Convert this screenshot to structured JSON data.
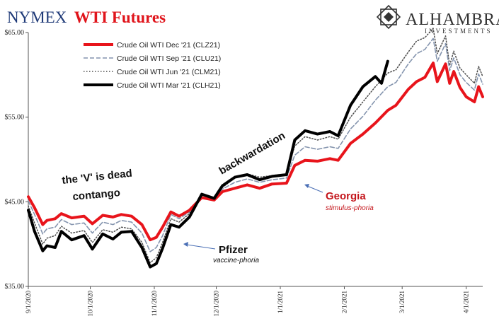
{
  "title": {
    "part1": "NYMEX",
    "part2": "WTI Futures"
  },
  "logo": {
    "name": "ALHAMBRA",
    "sub": "INVESTMENTS",
    "icon": "alhambra-star-logo"
  },
  "chart_data": {
    "type": "line",
    "ylim": [
      35,
      65
    ],
    "y_ticks": [
      35,
      45,
      55,
      65
    ],
    "y_tick_labels": [
      "$35.00",
      "$45.00",
      "$55.00",
      "$65.00"
    ],
    "x_tick_labels": [
      "9/1/2020",
      "10/1/2020",
      "11/1/2020",
      "12/1/2020",
      "1/1/2021",
      "2/1/2021",
      "3/1/2021",
      "4/1/2021"
    ],
    "x_range": [
      "2020-09-01",
      "2021-04-09"
    ],
    "legend_position": "top-left",
    "series": [
      {
        "name": "Crude Oil WTI Dec '21 (CLZ21)",
        "color": "#e8141b",
        "style": "solid-thick",
        "points": [
          [
            "2020-09-01",
            45.6
          ],
          [
            "2020-09-04",
            44.3
          ],
          [
            "2020-09-08",
            42.3
          ],
          [
            "2020-09-10",
            42.8
          ],
          [
            "2020-09-14",
            43.0
          ],
          [
            "2020-09-17",
            43.6
          ],
          [
            "2020-09-22",
            43.1
          ],
          [
            "2020-09-28",
            43.3
          ],
          [
            "2020-10-02",
            42.4
          ],
          [
            "2020-10-07",
            43.4
          ],
          [
            "2020-10-12",
            43.2
          ],
          [
            "2020-10-16",
            43.5
          ],
          [
            "2020-10-21",
            43.3
          ],
          [
            "2020-10-26",
            42.3
          ],
          [
            "2020-10-30",
            40.5
          ],
          [
            "2020-11-02",
            40.8
          ],
          [
            "2020-11-05",
            42.0
          ],
          [
            "2020-11-09",
            43.8
          ],
          [
            "2020-11-13",
            43.3
          ],
          [
            "2020-11-18",
            44.0
          ],
          [
            "2020-11-24",
            45.5
          ],
          [
            "2020-11-30",
            45.2
          ],
          [
            "2020-12-04",
            46.2
          ],
          [
            "2020-12-10",
            46.6
          ],
          [
            "2020-12-16",
            47.0
          ],
          [
            "2020-12-22",
            46.6
          ],
          [
            "2020-12-28",
            47.1
          ],
          [
            "2021-01-04",
            47.2
          ],
          [
            "2021-01-08",
            49.3
          ],
          [
            "2021-01-13",
            49.9
          ],
          [
            "2021-01-19",
            49.8
          ],
          [
            "2021-01-25",
            50.1
          ],
          [
            "2021-01-29",
            49.9
          ],
          [
            "2021-02-04",
            51.9
          ],
          [
            "2021-02-10",
            53.0
          ],
          [
            "2021-02-16",
            54.3
          ],
          [
            "2021-02-22",
            55.8
          ],
          [
            "2021-02-26",
            56.4
          ],
          [
            "2021-03-04",
            58.3
          ],
          [
            "2021-03-08",
            59.2
          ],
          [
            "2021-03-12",
            59.7
          ],
          [
            "2021-03-16",
            61.4
          ],
          [
            "2021-03-18",
            59.2
          ],
          [
            "2021-03-22",
            61.3
          ],
          [
            "2021-03-24",
            59.0
          ],
          [
            "2021-03-26",
            60.4
          ],
          [
            "2021-03-29",
            58.5
          ],
          [
            "2021-04-01",
            57.4
          ],
          [
            "2021-04-05",
            56.8
          ],
          [
            "2021-04-07",
            58.6
          ],
          [
            "2021-04-09",
            57.4
          ]
        ]
      },
      {
        "name": "Crude Oil WTI Sep '21 (CLU21)",
        "color": "#8494ae",
        "style": "dashed",
        "points": [
          [
            "2020-09-01",
            45.1
          ],
          [
            "2020-09-04",
            43.5
          ],
          [
            "2020-09-08",
            41.2
          ],
          [
            "2020-09-10",
            41.8
          ],
          [
            "2020-09-14",
            42.0
          ],
          [
            "2020-09-17",
            42.9
          ],
          [
            "2020-09-22",
            42.3
          ],
          [
            "2020-09-28",
            42.5
          ],
          [
            "2020-10-02",
            41.3
          ],
          [
            "2020-10-07",
            42.6
          ],
          [
            "2020-10-12",
            42.3
          ],
          [
            "2020-10-16",
            42.8
          ],
          [
            "2020-10-21",
            42.6
          ],
          [
            "2020-10-26",
            41.3
          ],
          [
            "2020-10-30",
            39.1
          ],
          [
            "2020-11-02",
            39.6
          ],
          [
            "2020-11-05",
            41.0
          ],
          [
            "2020-11-09",
            43.5
          ],
          [
            "2020-11-13",
            43.0
          ],
          [
            "2020-11-18",
            43.8
          ],
          [
            "2020-11-24",
            45.8
          ],
          [
            "2020-11-30",
            45.4
          ],
          [
            "2020-12-04",
            46.5
          ],
          [
            "2020-12-10",
            47.3
          ],
          [
            "2020-12-16",
            47.7
          ],
          [
            "2020-12-22",
            47.3
          ],
          [
            "2020-12-28",
            47.6
          ],
          [
            "2021-01-04",
            47.8
          ],
          [
            "2021-01-08",
            50.5
          ],
          [
            "2021-01-13",
            51.5
          ],
          [
            "2021-01-19",
            51.2
          ],
          [
            "2021-01-25",
            51.5
          ],
          [
            "2021-01-29",
            51.3
          ],
          [
            "2021-02-04",
            53.6
          ],
          [
            "2021-02-10",
            55.1
          ],
          [
            "2021-02-16",
            57.0
          ],
          [
            "2021-02-22",
            58.6
          ],
          [
            "2021-02-26",
            59.1
          ],
          [
            "2021-03-04",
            61.3
          ],
          [
            "2021-03-08",
            62.5
          ],
          [
            "2021-03-12",
            63.0
          ],
          [
            "2021-03-16",
            64.3
          ],
          [
            "2021-03-18",
            61.6
          ],
          [
            "2021-03-22",
            63.7
          ],
          [
            "2021-03-24",
            60.5
          ],
          [
            "2021-03-26",
            62.0
          ],
          [
            "2021-03-29",
            60.0
          ],
          [
            "2021-04-01",
            59.1
          ],
          [
            "2021-04-05",
            58.2
          ],
          [
            "2021-04-07",
            60.1
          ],
          [
            "2021-04-09",
            58.9
          ]
        ]
      },
      {
        "name": "Crude Oil WTI Jun '21 (CLM21)",
        "color": "#4a4a4a",
        "style": "dotted",
        "points": [
          [
            "2020-09-01",
            44.5
          ],
          [
            "2020-09-04",
            42.5
          ],
          [
            "2020-09-08",
            40.0
          ],
          [
            "2020-09-10",
            40.7
          ],
          [
            "2020-09-14",
            41.0
          ],
          [
            "2020-09-17",
            42.1
          ],
          [
            "2020-09-22",
            41.3
          ],
          [
            "2020-09-28",
            41.6
          ],
          [
            "2020-10-02",
            40.2
          ],
          [
            "2020-10-07",
            41.7
          ],
          [
            "2020-10-12",
            41.4
          ],
          [
            "2020-10-16",
            42.0
          ],
          [
            "2020-10-21",
            41.8
          ],
          [
            "2020-10-26",
            40.2
          ],
          [
            "2020-10-30",
            37.8
          ],
          [
            "2020-11-02",
            38.4
          ],
          [
            "2020-11-05",
            40.2
          ],
          [
            "2020-11-09",
            43.0
          ],
          [
            "2020-11-13",
            42.6
          ],
          [
            "2020-11-18",
            43.6
          ],
          [
            "2020-11-24",
            45.9
          ],
          [
            "2020-11-30",
            45.5
          ],
          [
            "2020-12-04",
            46.7
          ],
          [
            "2020-12-10",
            47.8
          ],
          [
            "2020-12-16",
            48.3
          ],
          [
            "2020-12-22",
            47.9
          ],
          [
            "2020-12-28",
            48.1
          ],
          [
            "2021-01-04",
            48.3
          ],
          [
            "2021-01-08",
            51.6
          ],
          [
            "2021-01-13",
            52.7
          ],
          [
            "2021-01-19",
            52.3
          ],
          [
            "2021-01-25",
            52.7
          ],
          [
            "2021-01-29",
            52.4
          ],
          [
            "2021-02-04",
            55.0
          ],
          [
            "2021-02-10",
            56.8
          ],
          [
            "2021-02-16",
            58.6
          ],
          [
            "2021-02-22",
            60.2
          ],
          [
            "2021-02-26",
            60.6
          ],
          [
            "2021-03-04",
            62.7
          ],
          [
            "2021-03-08",
            64.0
          ],
          [
            "2021-03-12",
            64.4
          ],
          [
            "2021-03-16",
            65.5
          ],
          [
            "2021-03-18",
            62.5
          ],
          [
            "2021-03-22",
            64.6
          ],
          [
            "2021-03-24",
            61.1
          ],
          [
            "2021-03-26",
            62.8
          ],
          [
            "2021-03-29",
            60.8
          ],
          [
            "2021-04-01",
            60.0
          ],
          [
            "2021-04-05",
            59.0
          ],
          [
            "2021-04-07",
            61.0
          ],
          [
            "2021-04-09",
            59.8
          ]
        ]
      },
      {
        "name": "Crude Oil WTI Mar '21 (CLH21)",
        "color": "#000000",
        "style": "solid-thick",
        "points": [
          [
            "2020-09-01",
            44.0
          ],
          [
            "2020-09-04",
            41.5
          ],
          [
            "2020-09-08",
            39.2
          ],
          [
            "2020-09-10",
            39.8
          ],
          [
            "2020-09-14",
            39.6
          ],
          [
            "2020-09-17",
            41.5
          ],
          [
            "2020-09-22",
            40.5
          ],
          [
            "2020-09-28",
            41.0
          ],
          [
            "2020-10-02",
            39.4
          ],
          [
            "2020-10-07",
            41.2
          ],
          [
            "2020-10-12",
            40.6
          ],
          [
            "2020-10-16",
            41.4
          ],
          [
            "2020-10-21",
            41.5
          ],
          [
            "2020-10-26",
            39.6
          ],
          [
            "2020-10-30",
            37.3
          ],
          [
            "2020-11-02",
            37.7
          ],
          [
            "2020-11-05",
            39.5
          ],
          [
            "2020-11-09",
            42.3
          ],
          [
            "2020-11-13",
            42.0
          ],
          [
            "2020-11-18",
            43.2
          ],
          [
            "2020-11-24",
            45.9
          ],
          [
            "2020-11-30",
            45.4
          ],
          [
            "2020-12-04",
            46.9
          ],
          [
            "2020-12-10",
            47.9
          ],
          [
            "2020-12-16",
            48.2
          ],
          [
            "2020-12-22",
            47.6
          ],
          [
            "2020-12-28",
            48.0
          ],
          [
            "2021-01-04",
            48.2
          ],
          [
            "2021-01-08",
            52.3
          ],
          [
            "2021-01-13",
            53.4
          ],
          [
            "2021-01-19",
            53.0
          ],
          [
            "2021-01-25",
            53.3
          ],
          [
            "2021-01-29",
            52.8
          ],
          [
            "2021-02-04",
            56.4
          ],
          [
            "2021-02-10",
            58.6
          ],
          [
            "2021-02-16",
            59.8
          ],
          [
            "2021-02-19",
            59.0
          ],
          [
            "2021-02-22",
            61.6
          ]
        ]
      }
    ]
  },
  "annotations": {
    "v_dead": "the 'V' is dead",
    "contango": "contango",
    "backwardation": "backwardation",
    "georgia": "Georgia",
    "stimulus": "stimulus-phoria",
    "pfizer": "Pfizer",
    "vaccine": "vaccine-phoria"
  }
}
